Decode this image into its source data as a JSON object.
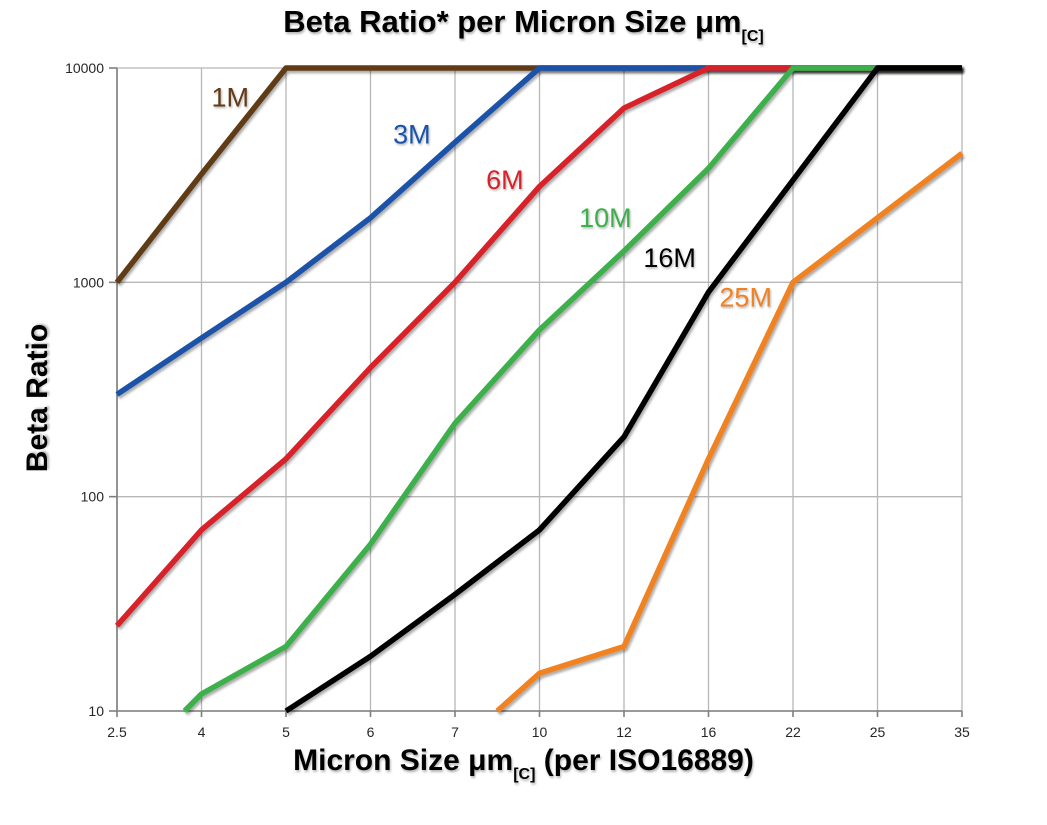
{
  "page": {
    "background": "#ffffff"
  },
  "chart_data": {
    "type": "line",
    "title_main": "Beta Ratio* per Micron Size μm",
    "title_sub": "[C]",
    "ylabel": "Beta Ratio",
    "xlabel_main": "Micron Size μm",
    "xlabel_sub": "[C]",
    "xlabel_rest": " (per ISO16889)",
    "x_categories": [
      "2.5",
      "4",
      "5",
      "6",
      "7",
      "10",
      "12",
      "16",
      "22",
      "25",
      "35"
    ],
    "x_spacing": "categorical-even",
    "y_scale": "log",
    "ylim": [
      10,
      10000
    ],
    "y_ticks": [
      "10",
      "100",
      "1000",
      "10000"
    ],
    "grid": {
      "vertical": true,
      "horizontal": true,
      "grid_color": "#b7b7b7",
      "axis_color": "#7f7f7f"
    },
    "legend_position": "inline-labels-on-lines",
    "series": [
      {
        "name": "1M",
        "color": "#5e3a14",
        "values": [
          1000,
          3200,
          10000,
          10000,
          10000,
          10000,
          10000,
          10000,
          10000,
          10000,
          10000
        ],
        "label_pos": {
          "xi": 1.34,
          "y": 7300
        }
      },
      {
        "name": "3M",
        "color": "#1a53a8",
        "values": [
          300,
          550,
          1000,
          2000,
          4500,
          10000,
          10000,
          10000,
          10000,
          10000,
          10000
        ],
        "label_pos": {
          "xi": 3.49,
          "y": 4900
        }
      },
      {
        "name": "6M",
        "color": "#d7222a",
        "values": [
          25,
          70,
          150,
          400,
          1000,
          2800,
          6500,
          10000,
          10000,
          10000,
          10000
        ],
        "label_pos": {
          "xi": 4.59,
          "y": 3000
        }
      },
      {
        "name": "10M",
        "color": "#3cb04b",
        "values": [
          null,
          12,
          20,
          60,
          220,
          600,
          1400,
          3400,
          10000,
          10000,
          10000
        ],
        "pre": {
          "xi": 0.8,
          "y": 10
        },
        "label_pos": {
          "xi": 5.78,
          "y": 2000
        }
      },
      {
        "name": "16M",
        "color": "#000000",
        "values": [
          null,
          null,
          10,
          18,
          35,
          70,
          190,
          900,
          3000,
          10000,
          10000
        ],
        "label_pos": {
          "xi": 6.54,
          "y": 1300
        }
      },
      {
        "name": "25M",
        "color": "#f08221",
        "values": [
          null,
          null,
          null,
          null,
          null,
          15,
          20,
          150,
          1000,
          2000,
          4000
        ],
        "pre": {
          "xi": 4.5,
          "y": 10
        },
        "label_pos": {
          "xi": 7.44,
          "y": 850
        }
      }
    ]
  }
}
